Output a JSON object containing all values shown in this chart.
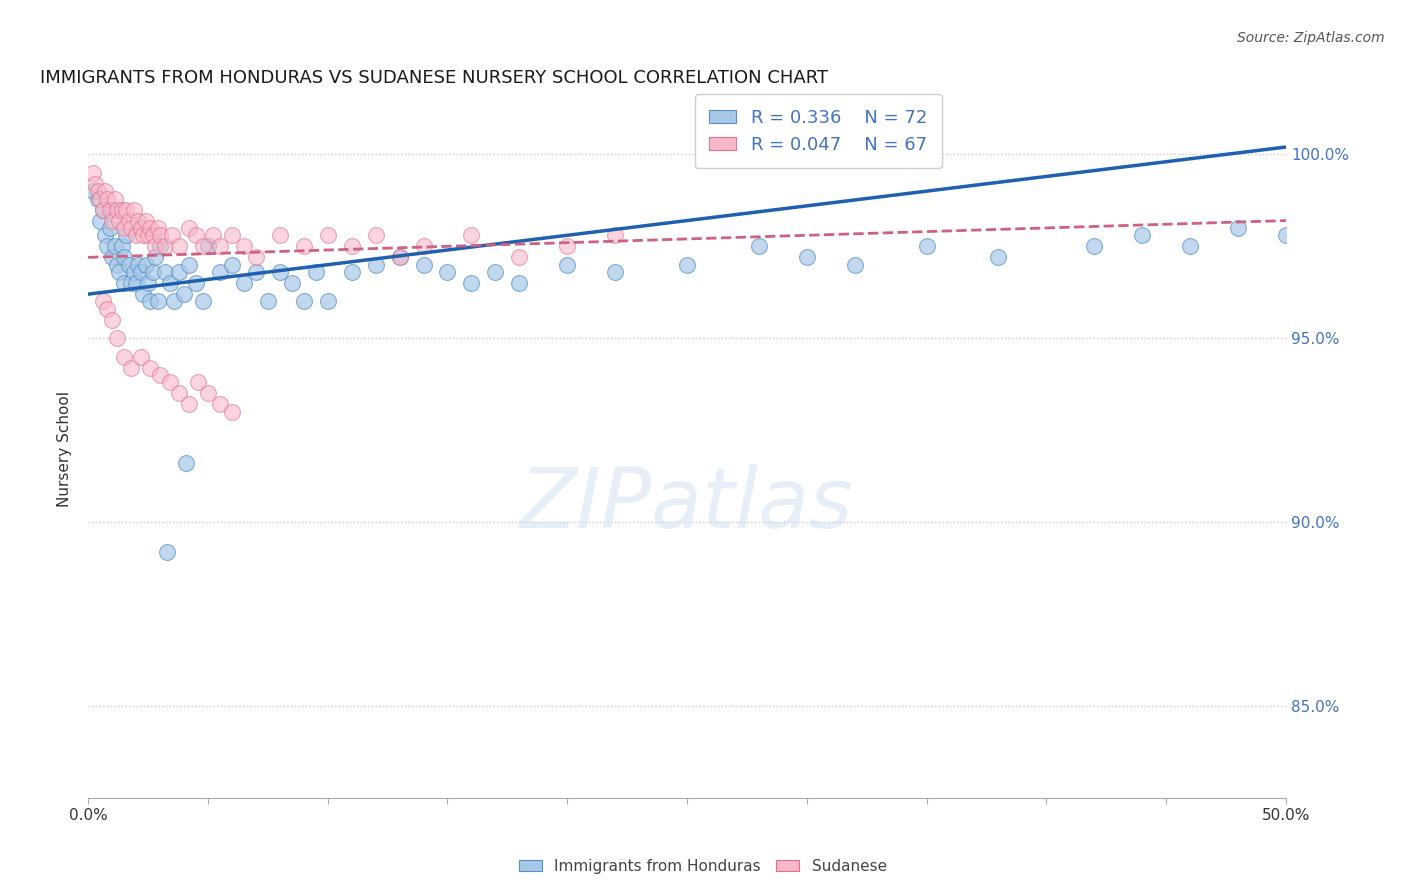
{
  "title": "IMMIGRANTS FROM HONDURAS VS SUDANESE NURSERY SCHOOL CORRELATION CHART",
  "source": "Source: ZipAtlas.com",
  "ylabel": "Nursery School",
  "xlim": [
    0.0,
    0.5
  ],
  "ylim": [
    0.825,
    1.015
  ],
  "yticks": [
    0.85,
    0.9,
    0.95,
    1.0
  ],
  "ytick_labels": [
    "85.0%",
    "90.0%",
    "95.0%",
    "100.0%"
  ],
  "xticks": [
    0.0,
    0.05,
    0.1,
    0.15,
    0.2,
    0.25,
    0.3,
    0.35,
    0.4,
    0.45,
    0.5
  ],
  "xtick_labels": [
    "0.0%",
    "",
    "",
    "",
    "",
    "",
    "",
    "",
    "",
    "",
    "50.0%"
  ],
  "blue_fill_color": "#a8c8e8",
  "blue_edge_color": "#5590c8",
  "pink_fill_color": "#f8b8c8",
  "pink_edge_color": "#e07090",
  "blue_line_color": "#2060b0",
  "pink_line_color": "#d06080",
  "background_color": "#ffffff",
  "grid_color": "#c8c8c8",
  "watermark": "ZIPatlas",
  "blue_scatter_x": [
    0.002,
    0.004,
    0.005,
    0.006,
    0.007,
    0.008,
    0.009,
    0.01,
    0.01,
    0.011,
    0.012,
    0.013,
    0.014,
    0.015,
    0.015,
    0.016,
    0.017,
    0.018,
    0.019,
    0.02,
    0.021,
    0.022,
    0.023,
    0.024,
    0.025,
    0.026,
    0.027,
    0.028,
    0.029,
    0.03,
    0.032,
    0.034,
    0.036,
    0.038,
    0.04,
    0.042,
    0.045,
    0.048,
    0.05,
    0.055,
    0.06,
    0.065,
    0.07,
    0.075,
    0.08,
    0.085,
    0.09,
    0.095,
    0.1,
    0.11,
    0.12,
    0.13,
    0.14,
    0.15,
    0.16,
    0.17,
    0.18,
    0.2,
    0.22,
    0.25,
    0.28,
    0.3,
    0.32,
    0.35,
    0.38,
    0.42,
    0.44,
    0.46,
    0.48,
    0.5,
    0.033,
    0.041
  ],
  "blue_scatter_y": [
    0.99,
    0.988,
    0.982,
    0.985,
    0.978,
    0.975,
    0.98,
    0.972,
    0.985,
    0.975,
    0.97,
    0.968,
    0.975,
    0.972,
    0.965,
    0.978,
    0.97,
    0.965,
    0.968,
    0.965,
    0.97,
    0.968,
    0.962,
    0.97,
    0.965,
    0.96,
    0.968,
    0.972,
    0.96,
    0.975,
    0.968,
    0.965,
    0.96,
    0.968,
    0.962,
    0.97,
    0.965,
    0.96,
    0.975,
    0.968,
    0.97,
    0.965,
    0.968,
    0.96,
    0.968,
    0.965,
    0.96,
    0.968,
    0.96,
    0.968,
    0.97,
    0.972,
    0.97,
    0.968,
    0.965,
    0.968,
    0.965,
    0.97,
    0.968,
    0.97,
    0.975,
    0.972,
    0.97,
    0.975,
    0.972,
    0.975,
    0.978,
    0.975,
    0.98,
    0.978,
    0.892,
    0.916
  ],
  "pink_scatter_x": [
    0.002,
    0.003,
    0.004,
    0.005,
    0.006,
    0.007,
    0.008,
    0.009,
    0.01,
    0.011,
    0.012,
    0.013,
    0.014,
    0.015,
    0.016,
    0.017,
    0.018,
    0.019,
    0.02,
    0.021,
    0.022,
    0.023,
    0.024,
    0.025,
    0.026,
    0.027,
    0.028,
    0.029,
    0.03,
    0.032,
    0.035,
    0.038,
    0.042,
    0.045,
    0.048,
    0.052,
    0.055,
    0.06,
    0.065,
    0.07,
    0.08,
    0.09,
    0.1,
    0.11,
    0.12,
    0.13,
    0.14,
    0.16,
    0.18,
    0.2,
    0.22,
    0.006,
    0.008,
    0.01,
    0.012,
    0.015,
    0.018,
    0.022,
    0.026,
    0.03,
    0.034,
    0.038,
    0.042,
    0.046,
    0.05,
    0.055,
    0.06
  ],
  "pink_scatter_y": [
    0.995,
    0.992,
    0.99,
    0.988,
    0.985,
    0.99,
    0.988,
    0.985,
    0.982,
    0.988,
    0.985,
    0.982,
    0.985,
    0.98,
    0.985,
    0.982,
    0.98,
    0.985,
    0.978,
    0.982,
    0.98,
    0.978,
    0.982,
    0.978,
    0.98,
    0.978,
    0.975,
    0.98,
    0.978,
    0.975,
    0.978,
    0.975,
    0.98,
    0.978,
    0.975,
    0.978,
    0.975,
    0.978,
    0.975,
    0.972,
    0.978,
    0.975,
    0.978,
    0.975,
    0.978,
    0.972,
    0.975,
    0.978,
    0.972,
    0.975,
    0.978,
    0.96,
    0.958,
    0.955,
    0.95,
    0.945,
    0.942,
    0.945,
    0.942,
    0.94,
    0.938,
    0.935,
    0.932,
    0.938,
    0.935,
    0.932,
    0.93
  ]
}
